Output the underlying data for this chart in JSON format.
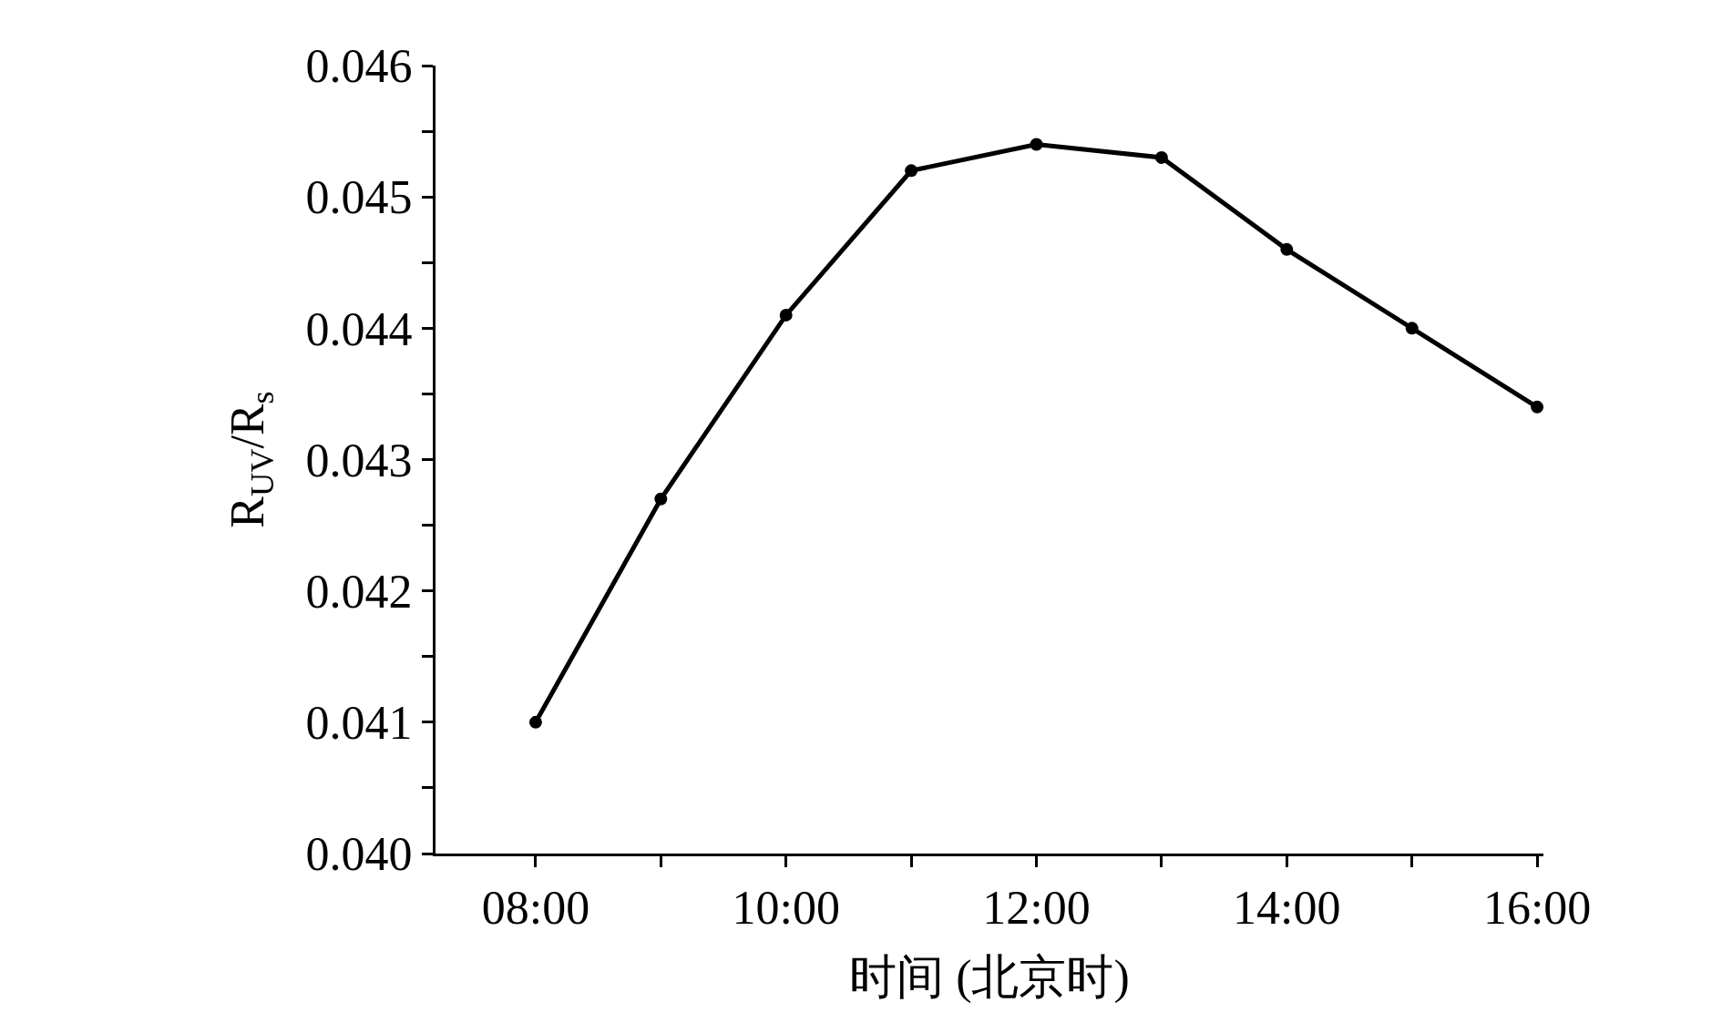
{
  "chart_data": {
    "type": "line",
    "xlabel": "时间 (北京时)",
    "ylabel": "R$_{UV}$/R$_{s}$",
    "x": [
      8,
      9,
      10,
      11,
      12,
      13,
      14,
      15,
      16
    ],
    "series": [
      {
        "color": "#000000",
        "values": [
          0.041,
          0.0427,
          0.0441,
          0.0452,
          0.0454,
          0.0453,
          0.0446,
          0.044,
          0.0434
        ]
      }
    ],
    "xlim": [
      7.2,
      16.05
    ],
    "xticks": [
      {
        "value": 8,
        "label": "08:00"
      },
      {
        "value": 9,
        "label": null
      },
      {
        "value": 10,
        "label": "10:00"
      },
      {
        "value": 11,
        "label": null
      },
      {
        "value": 12,
        "label": "12:00"
      },
      {
        "value": 13,
        "label": null
      },
      {
        "value": 14,
        "label": "14:00"
      },
      {
        "value": 15,
        "label": null
      },
      {
        "value": 16,
        "label": "16:00"
      }
    ],
    "ylim": [
      0.04,
      0.046
    ],
    "yticks": [
      {
        "value": 0.04,
        "label": "0.040"
      },
      {
        "value": 0.0405,
        "label": null
      },
      {
        "value": 0.041,
        "label": "0.041"
      },
      {
        "value": 0.0415,
        "label": null
      },
      {
        "value": 0.042,
        "label": "0.042"
      },
      {
        "value": 0.0425,
        "label": null
      },
      {
        "value": 0.043,
        "label": "0.043"
      },
      {
        "value": 0.0435,
        "label": null
      },
      {
        "value": 0.044,
        "label": "0.044"
      },
      {
        "value": 0.0445,
        "label": null
      },
      {
        "value": 0.045,
        "label": "0.045"
      },
      {
        "value": 0.0455,
        "label": null
      },
      {
        "value": 0.046,
        "label": "0.046"
      }
    ],
    "grid": false,
    "legend": false,
    "marker": "circle",
    "line_style": "solid"
  }
}
